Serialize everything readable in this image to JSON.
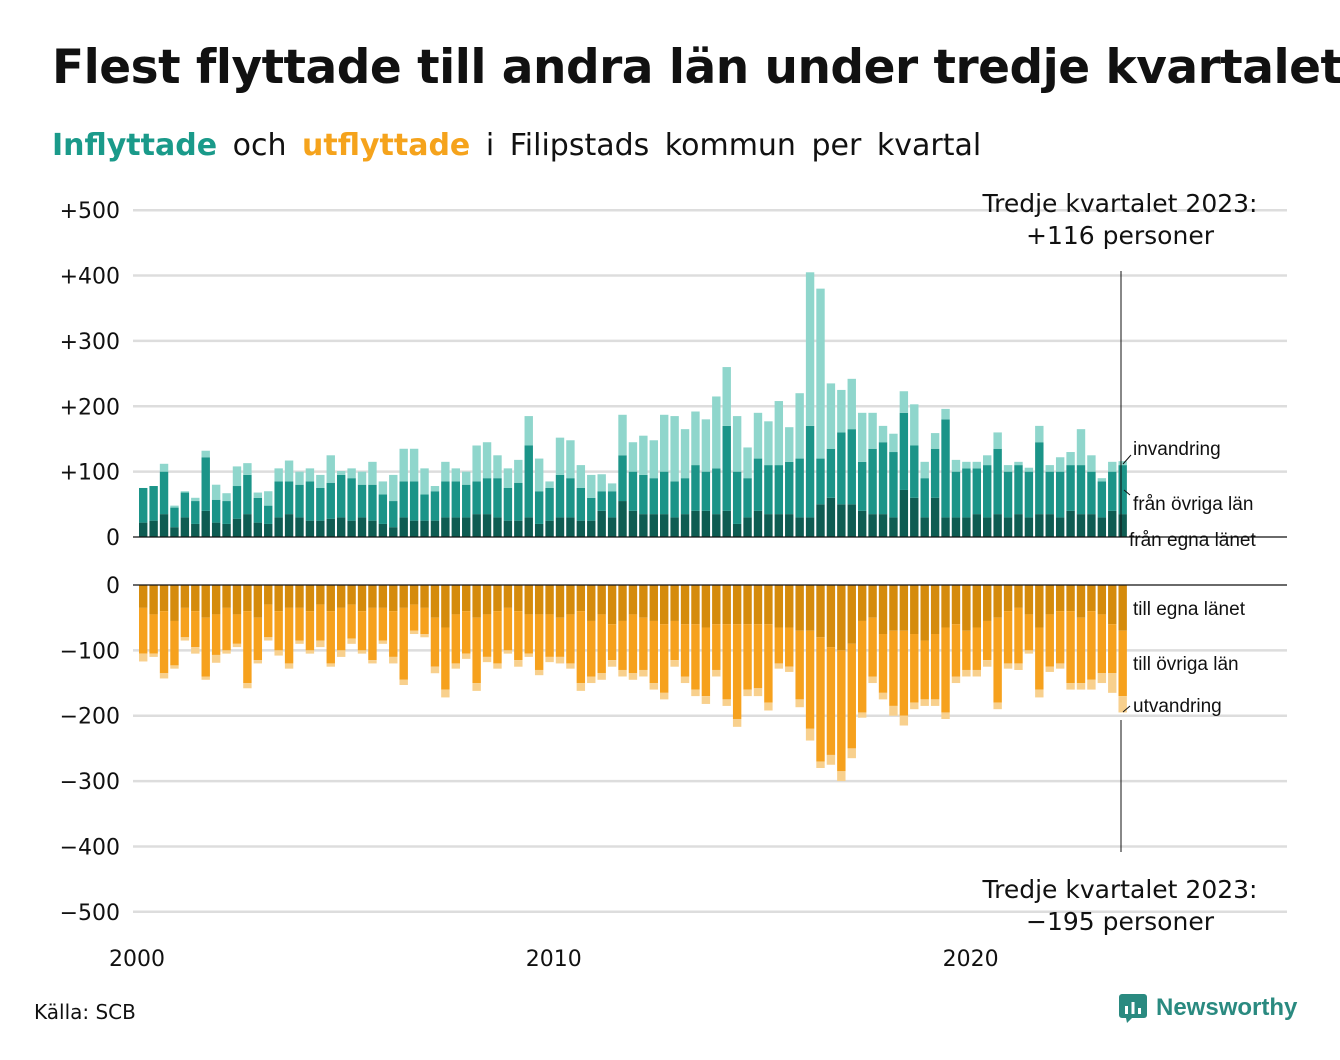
{
  "title": "Flest flyttade till andra län under tredje kvartalet",
  "subtitle": {
    "in": "Inflyttade",
    "mid": "och",
    "out": "utflyttade",
    "rest": "i Filipstads kommun per kvartal"
  },
  "source": "Källa: SCB",
  "brand": "Newsworthy",
  "colors": {
    "in_own": "#0e5c52",
    "in_other": "#1b9488",
    "in_immig": "#8fd6cc",
    "out_own": "#d58b0c",
    "out_other": "#f6a11d",
    "out_emig": "#f8d08d",
    "grid": "#dddddd"
  },
  "chart_data": {
    "type": "bar",
    "stacked": true,
    "unit": "personer per kvartal",
    "start": "2000 Q1",
    "x_ticks": [
      "2000",
      "2010",
      "2020"
    ],
    "y_ticks_top": [
      "+500",
      "+400",
      "+300",
      "+200",
      "+100",
      "0"
    ],
    "y_ticks_bottom": [
      "0",
      "−100",
      "−200",
      "−300",
      "−400",
      "−500"
    ],
    "ylim_top": [
      0,
      500
    ],
    "ylim_bottom": [
      -500,
      0
    ],
    "series_labels": {
      "in_immig": "invandring",
      "in_other": "från övriga län",
      "in_own": "från egna länet",
      "out_own": "till egna länet",
      "out_other": "till övriga län",
      "out_emig": "utvandring"
    },
    "annotation_top": {
      "line1": "Tredje kvartalet 2023:",
      "line2": "+116 personer"
    },
    "annotation_bottom": {
      "line1": "Tredje kvartalet 2023:",
      "line2": "−195 personer"
    },
    "inflow": [
      {
        "own": 22,
        "other": 53,
        "immig": 0
      },
      {
        "own": 25,
        "other": 53,
        "immig": 0
      },
      {
        "own": 35,
        "other": 65,
        "immig": 12
      },
      {
        "own": 15,
        "other": 30,
        "immig": 3
      },
      {
        "own": 30,
        "other": 38,
        "immig": 2
      },
      {
        "own": 20,
        "other": 35,
        "immig": 5
      },
      {
        "own": 40,
        "other": 82,
        "immig": 10
      },
      {
        "own": 22,
        "other": 35,
        "immig": 23
      },
      {
        "own": 20,
        "other": 35,
        "immig": 12
      },
      {
        "own": 28,
        "other": 50,
        "immig": 30
      },
      {
        "own": 35,
        "other": 60,
        "immig": 18
      },
      {
        "own": 22,
        "other": 38,
        "immig": 8
      },
      {
        "own": 20,
        "other": 28,
        "immig": 22
      },
      {
        "own": 30,
        "other": 55,
        "immig": 20
      },
      {
        "own": 35,
        "other": 50,
        "immig": 32
      },
      {
        "own": 30,
        "other": 50,
        "immig": 20
      },
      {
        "own": 25,
        "other": 60,
        "immig": 20
      },
      {
        "own": 25,
        "other": 50,
        "immig": 20
      },
      {
        "own": 28,
        "other": 55,
        "immig": 42
      },
      {
        "own": 30,
        "other": 65,
        "immig": 6
      },
      {
        "own": 25,
        "other": 65,
        "immig": 15
      },
      {
        "own": 30,
        "other": 50,
        "immig": 20
      },
      {
        "own": 25,
        "other": 55,
        "immig": 35
      },
      {
        "own": 20,
        "other": 45,
        "immig": 20
      },
      {
        "own": 15,
        "other": 40,
        "immig": 40
      },
      {
        "own": 30,
        "other": 55,
        "immig": 50
      },
      {
        "own": 25,
        "other": 60,
        "immig": 50
      },
      {
        "own": 25,
        "other": 40,
        "immig": 40
      },
      {
        "own": 25,
        "other": 45,
        "immig": 8
      },
      {
        "own": 30,
        "other": 55,
        "immig": 30
      },
      {
        "own": 30,
        "other": 55,
        "immig": 20
      },
      {
        "own": 30,
        "other": 50,
        "immig": 20
      },
      {
        "own": 35,
        "other": 50,
        "immig": 55
      },
      {
        "own": 35,
        "other": 55,
        "immig": 55
      },
      {
        "own": 30,
        "other": 60,
        "immig": 35
      },
      {
        "own": 25,
        "other": 50,
        "immig": 30
      },
      {
        "own": 25,
        "other": 58,
        "immig": 35
      },
      {
        "own": 30,
        "other": 110,
        "immig": 45
      },
      {
        "own": 20,
        "other": 50,
        "immig": 50
      },
      {
        "own": 25,
        "other": 50,
        "immig": 10
      },
      {
        "own": 30,
        "other": 65,
        "immig": 57
      },
      {
        "own": 30,
        "other": 60,
        "immig": 58
      },
      {
        "own": 25,
        "other": 50,
        "immig": 35
      },
      {
        "own": 25,
        "other": 35,
        "immig": 35
      },
      {
        "own": 40,
        "other": 30,
        "immig": 26
      },
      {
        "own": 30,
        "other": 40,
        "immig": 12
      },
      {
        "own": 55,
        "other": 70,
        "immig": 62
      },
      {
        "own": 40,
        "other": 60,
        "immig": 45
      },
      {
        "own": 35,
        "other": 60,
        "immig": 60
      },
      {
        "own": 35,
        "other": 55,
        "immig": 58
      },
      {
        "own": 35,
        "other": 65,
        "immig": 87
      },
      {
        "own": 30,
        "other": 55,
        "immig": 100
      },
      {
        "own": 35,
        "other": 55,
        "immig": 75
      },
      {
        "own": 40,
        "other": 70,
        "immig": 82
      },
      {
        "own": 40,
        "other": 60,
        "immig": 80
      },
      {
        "own": 35,
        "other": 70,
        "immig": 110
      },
      {
        "own": 40,
        "other": 130,
        "immig": 90
      },
      {
        "own": 20,
        "other": 80,
        "immig": 85
      },
      {
        "own": 30,
        "other": 60,
        "immig": 47
      },
      {
        "own": 40,
        "other": 80,
        "immig": 70
      },
      {
        "own": 35,
        "other": 75,
        "immig": 67
      },
      {
        "own": 35,
        "other": 75,
        "immig": 98
      },
      {
        "own": 35,
        "other": 80,
        "immig": 53
      },
      {
        "own": 30,
        "other": 90,
        "immig": 100
      },
      {
        "own": 30,
        "other": 140,
        "immig": 235
      },
      {
        "own": 50,
        "other": 70,
        "immig": 260
      },
      {
        "own": 60,
        "other": 75,
        "immig": 100
      },
      {
        "own": 50,
        "other": 110,
        "immig": 65
      },
      {
        "own": 50,
        "other": 115,
        "immig": 77
      },
      {
        "own": 40,
        "other": 75,
        "immig": 75
      },
      {
        "own": 35,
        "other": 100,
        "immig": 55
      },
      {
        "own": 35,
        "other": 110,
        "immig": 25
      },
      {
        "own": 30,
        "other": 100,
        "immig": 28
      },
      {
        "own": 72,
        "other": 118,
        "immig": 33
      },
      {
        "own": 60,
        "other": 80,
        "immig": 63
      },
      {
        "own": 30,
        "other": 60,
        "immig": 25
      },
      {
        "own": 60,
        "other": 75,
        "immig": 24
      },
      {
        "own": 30,
        "other": 150,
        "immig": 16
      },
      {
        "own": 30,
        "other": 70,
        "immig": 18
      },
      {
        "own": 30,
        "other": 75,
        "immig": 10
      },
      {
        "own": 35,
        "other": 70,
        "immig": 10
      },
      {
        "own": 30,
        "other": 80,
        "immig": 15
      },
      {
        "own": 35,
        "other": 100,
        "immig": 25
      },
      {
        "own": 30,
        "other": 70,
        "immig": 10
      },
      {
        "own": 35,
        "other": 75,
        "immig": 5
      },
      {
        "own": 30,
        "other": 70,
        "immig": 6
      },
      {
        "own": 35,
        "other": 110,
        "immig": 25
      },
      {
        "own": 35,
        "other": 65,
        "immig": 10
      },
      {
        "own": 30,
        "other": 70,
        "immig": 22
      },
      {
        "own": 40,
        "other": 70,
        "immig": 20
      },
      {
        "own": 35,
        "other": 75,
        "immig": 55
      },
      {
        "own": 35,
        "other": 65,
        "immig": 25
      },
      {
        "own": 30,
        "other": 55,
        "immig": 5
      },
      {
        "own": 40,
        "other": 60,
        "immig": 15
      },
      {
        "own": 35,
        "other": 75,
        "immig": 6
      }
    ],
    "outflow": [
      {
        "own": 35,
        "other": 70,
        "emig": 12
      },
      {
        "own": 45,
        "other": 60,
        "emig": 5
      },
      {
        "own": 40,
        "other": 95,
        "emig": 8
      },
      {
        "own": 55,
        "other": 68,
        "emig": 5
      },
      {
        "own": 35,
        "other": 45,
        "emig": 5
      },
      {
        "own": 40,
        "other": 55,
        "emig": 10
      },
      {
        "own": 50,
        "other": 90,
        "emig": 5
      },
      {
        "own": 45,
        "other": 62,
        "emig": 12
      },
      {
        "own": 35,
        "other": 65,
        "emig": 5
      },
      {
        "own": 45,
        "other": 45,
        "emig": 5
      },
      {
        "own": 40,
        "other": 110,
        "emig": 8
      },
      {
        "own": 50,
        "other": 65,
        "emig": 5
      },
      {
        "own": 30,
        "other": 50,
        "emig": 5
      },
      {
        "own": 40,
        "other": 60,
        "emig": 8
      },
      {
        "own": 35,
        "other": 85,
        "emig": 8
      },
      {
        "own": 35,
        "other": 50,
        "emig": 5
      },
      {
        "own": 40,
        "other": 60,
        "emig": 5
      },
      {
        "own": 30,
        "other": 55,
        "emig": 10
      },
      {
        "own": 40,
        "other": 80,
        "emig": 5
      },
      {
        "own": 35,
        "other": 65,
        "emig": 10
      },
      {
        "own": 30,
        "other": 52,
        "emig": 8
      },
      {
        "own": 40,
        "other": 60,
        "emig": 5
      },
      {
        "own": 35,
        "other": 80,
        "emig": 5
      },
      {
        "own": 35,
        "other": 50,
        "emig": 5
      },
      {
        "own": 40,
        "other": 70,
        "emig": 10
      },
      {
        "own": 35,
        "other": 110,
        "emig": 8
      },
      {
        "own": 30,
        "other": 40,
        "emig": 5
      },
      {
        "own": 35,
        "other": 40,
        "emig": 5
      },
      {
        "own": 50,
        "other": 75,
        "emig": 10
      },
      {
        "own": 65,
        "other": 95,
        "emig": 12
      },
      {
        "own": 45,
        "other": 75,
        "emig": 8
      },
      {
        "own": 40,
        "other": 65,
        "emig": 8
      },
      {
        "own": 50,
        "other": 100,
        "emig": 12
      },
      {
        "own": 45,
        "other": 65,
        "emig": 8
      },
      {
        "own": 40,
        "other": 80,
        "emig": 8
      },
      {
        "own": 35,
        "other": 65,
        "emig": 5
      },
      {
        "own": 40,
        "other": 75,
        "emig": 10
      },
      {
        "own": 45,
        "other": 60,
        "emig": 5
      },
      {
        "own": 45,
        "other": 85,
        "emig": 8
      },
      {
        "own": 45,
        "other": 65,
        "emig": 8
      },
      {
        "own": 50,
        "other": 60,
        "emig": 10
      },
      {
        "own": 45,
        "other": 75,
        "emig": 8
      },
      {
        "own": 40,
        "other": 110,
        "emig": 12
      },
      {
        "own": 55,
        "other": 85,
        "emig": 10
      },
      {
        "own": 45,
        "other": 90,
        "emig": 10
      },
      {
        "own": 60,
        "other": 55,
        "emig": 10
      },
      {
        "own": 55,
        "other": 75,
        "emig": 10
      },
      {
        "own": 45,
        "other": 90,
        "emig": 10
      },
      {
        "own": 50,
        "other": 80,
        "emig": 10
      },
      {
        "own": 55,
        "other": 95,
        "emig": 10
      },
      {
        "own": 60,
        "other": 105,
        "emig": 10
      },
      {
        "own": 55,
        "other": 60,
        "emig": 10
      },
      {
        "own": 60,
        "other": 80,
        "emig": 10
      },
      {
        "own": 60,
        "other": 100,
        "emig": 10
      },
      {
        "own": 65,
        "other": 105,
        "emig": 12
      },
      {
        "own": 60,
        "other": 70,
        "emig": 10
      },
      {
        "own": 60,
        "other": 115,
        "emig": 10
      },
      {
        "own": 60,
        "other": 145,
        "emig": 12
      },
      {
        "own": 60,
        "other": 100,
        "emig": 10
      },
      {
        "own": 60,
        "other": 98,
        "emig": 12
      },
      {
        "own": 60,
        "other": 120,
        "emig": 12
      },
      {
        "own": 65,
        "other": 55,
        "emig": 8
      },
      {
        "own": 65,
        "other": 60,
        "emig": 8
      },
      {
        "own": 70,
        "other": 105,
        "emig": 12
      },
      {
        "own": 70,
        "other": 150,
        "emig": 18
      },
      {
        "own": 80,
        "other": 190,
        "emig": 10
      },
      {
        "own": 95,
        "other": 165,
        "emig": 15
      },
      {
        "own": 100,
        "other": 185,
        "emig": 15
      },
      {
        "own": 90,
        "other": 160,
        "emig": 15
      },
      {
        "own": 55,
        "other": 140,
        "emig": 8
      },
      {
        "own": 50,
        "other": 90,
        "emig": 10
      },
      {
        "own": 75,
        "other": 90,
        "emig": 10
      },
      {
        "own": 70,
        "other": 115,
        "emig": 15
      },
      {
        "own": 70,
        "other": 130,
        "emig": 15
      },
      {
        "own": 75,
        "other": 105,
        "emig": 10
      },
      {
        "own": 85,
        "other": 90,
        "emig": 10
      },
      {
        "own": 75,
        "other": 100,
        "emig": 10
      },
      {
        "own": 65,
        "other": 130,
        "emig": 10
      },
      {
        "own": 60,
        "other": 80,
        "emig": 10
      },
      {
        "own": 70,
        "other": 60,
        "emig": 10
      },
      {
        "own": 65,
        "other": 65,
        "emig": 10
      },
      {
        "own": 55,
        "other": 60,
        "emig": 10
      },
      {
        "own": 50,
        "other": 130,
        "emig": 10
      },
      {
        "own": 40,
        "other": 80,
        "emig": 8
      },
      {
        "own": 35,
        "other": 85,
        "emig": 10
      },
      {
        "own": 45,
        "other": 55,
        "emig": 5
      },
      {
        "own": 65,
        "other": 95,
        "emig": 12
      },
      {
        "own": 45,
        "other": 80,
        "emig": 8
      },
      {
        "own": 40,
        "other": 80,
        "emig": 8
      },
      {
        "own": 40,
        "other": 110,
        "emig": 10
      },
      {
        "own": 50,
        "other": 100,
        "emig": 10
      },
      {
        "own": 40,
        "other": 105,
        "emig": 15
      },
      {
        "own": 45,
        "other": 90,
        "emig": 15
      },
      {
        "own": 60,
        "other": 75,
        "emig": 30
      },
      {
        "own": 70,
        "other": 100,
        "emig": 25
      }
    ]
  }
}
